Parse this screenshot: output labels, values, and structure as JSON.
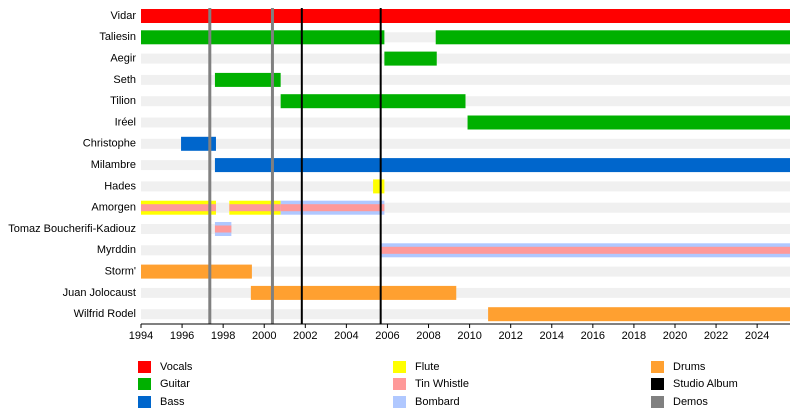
{
  "chart_data": {
    "type": "timeline",
    "categories": [
      "Vidar",
      "Taliesin",
      "Aegir",
      "Seth",
      "Tilion",
      "Iréel",
      "Christophe",
      "Milambre",
      "Hades",
      "Amorgen",
      "Tomaz Boucherifi-Kadiouz",
      "Myrddin",
      "Storm'",
      "Juan Jolocaust",
      "Wilfrid Rodel"
    ],
    "xlim": [
      1994,
      2025.6
    ],
    "xticks": [
      1994,
      1996,
      1998,
      2000,
      2002,
      2004,
      2006,
      2008,
      2010,
      2012,
      2014,
      2016,
      2018,
      2020,
      2022,
      2024
    ],
    "series": [
      {
        "name": "Vocals",
        "color": "#ff0000",
        "bars": [
          {
            "member": "Vidar",
            "start": 1994,
            "end": 2025.6
          }
        ]
      },
      {
        "name": "Guitar",
        "color": "#00b000",
        "bars": [
          {
            "member": "Taliesin",
            "start": 1994,
            "end": 2005.85
          },
          {
            "member": "Taliesin",
            "start": 2008.35,
            "end": 2025.6
          },
          {
            "member": "Aegir",
            "start": 2005.85,
            "end": 2008.4
          },
          {
            "member": "Seth",
            "start": 1997.6,
            "end": 2000.8
          },
          {
            "member": "Tilion",
            "start": 2000.8,
            "end": 2009.8
          },
          {
            "member": "Iréel",
            "start": 2009.9,
            "end": 2025.6
          }
        ]
      },
      {
        "name": "Bass",
        "color": "#0066cc",
        "bars": [
          {
            "member": "Christophe",
            "start": 1995.95,
            "end": 1997.65
          },
          {
            "member": "Milambre",
            "start": 1997.6,
            "end": 2025.6
          }
        ]
      },
      {
        "name": "Flute",
        "color": "#ffff00",
        "bars": [
          {
            "member": "Hades",
            "start": 2005.3,
            "end": 2005.85
          },
          {
            "member": "Amorgen",
            "start": 1994,
            "end": 1997.65
          },
          {
            "member": "Amorgen",
            "start": 1998.3,
            "end": 2000.8
          }
        ]
      },
      {
        "name": "Tin Whistle",
        "color": "#ff9999",
        "thickness": 0.5,
        "bars": [
          {
            "member": "Amorgen",
            "start": 1994,
            "end": 1997.65
          },
          {
            "member": "Amorgen",
            "start": 1998.3,
            "end": 2000.8
          },
          {
            "member": "Amorgen",
            "start": 2000.8,
            "end": 2005.85
          },
          {
            "member": "Tomaz Boucherifi-Kadiouz",
            "start": 1997.6,
            "end": 1998.4
          },
          {
            "member": "Myrddin",
            "start": 2005.7,
            "end": 2025.6
          }
        ]
      },
      {
        "name": "Bombard",
        "color": "#b0c8ff",
        "bars": [
          {
            "member": "Amorgen",
            "start": 2000.8,
            "end": 2005.85
          },
          {
            "member": "Tomaz Boucherifi-Kadiouz",
            "start": 1997.6,
            "end": 1998.4
          },
          {
            "member": "Myrddin",
            "start": 2005.7,
            "end": 2025.6
          }
        ]
      },
      {
        "name": "Drums",
        "color": "#ffa030",
        "bars": [
          {
            "member": "Storm'",
            "start": 1994,
            "end": 1999.4
          },
          {
            "member": "Juan Jolocaust",
            "start": 1999.35,
            "end": 2009.35
          },
          {
            "member": "Wilfrid Rodel",
            "start": 2010.9,
            "end": 2025.6
          }
        ]
      },
      {
        "name": "Studio Album",
        "color": "#000000",
        "lines": [
          2001.83,
          2005.67
        ]
      },
      {
        "name": "Demos",
        "color": "#808080",
        "lines": [
          1997.35,
          2000.4
        ]
      }
    ]
  }
}
